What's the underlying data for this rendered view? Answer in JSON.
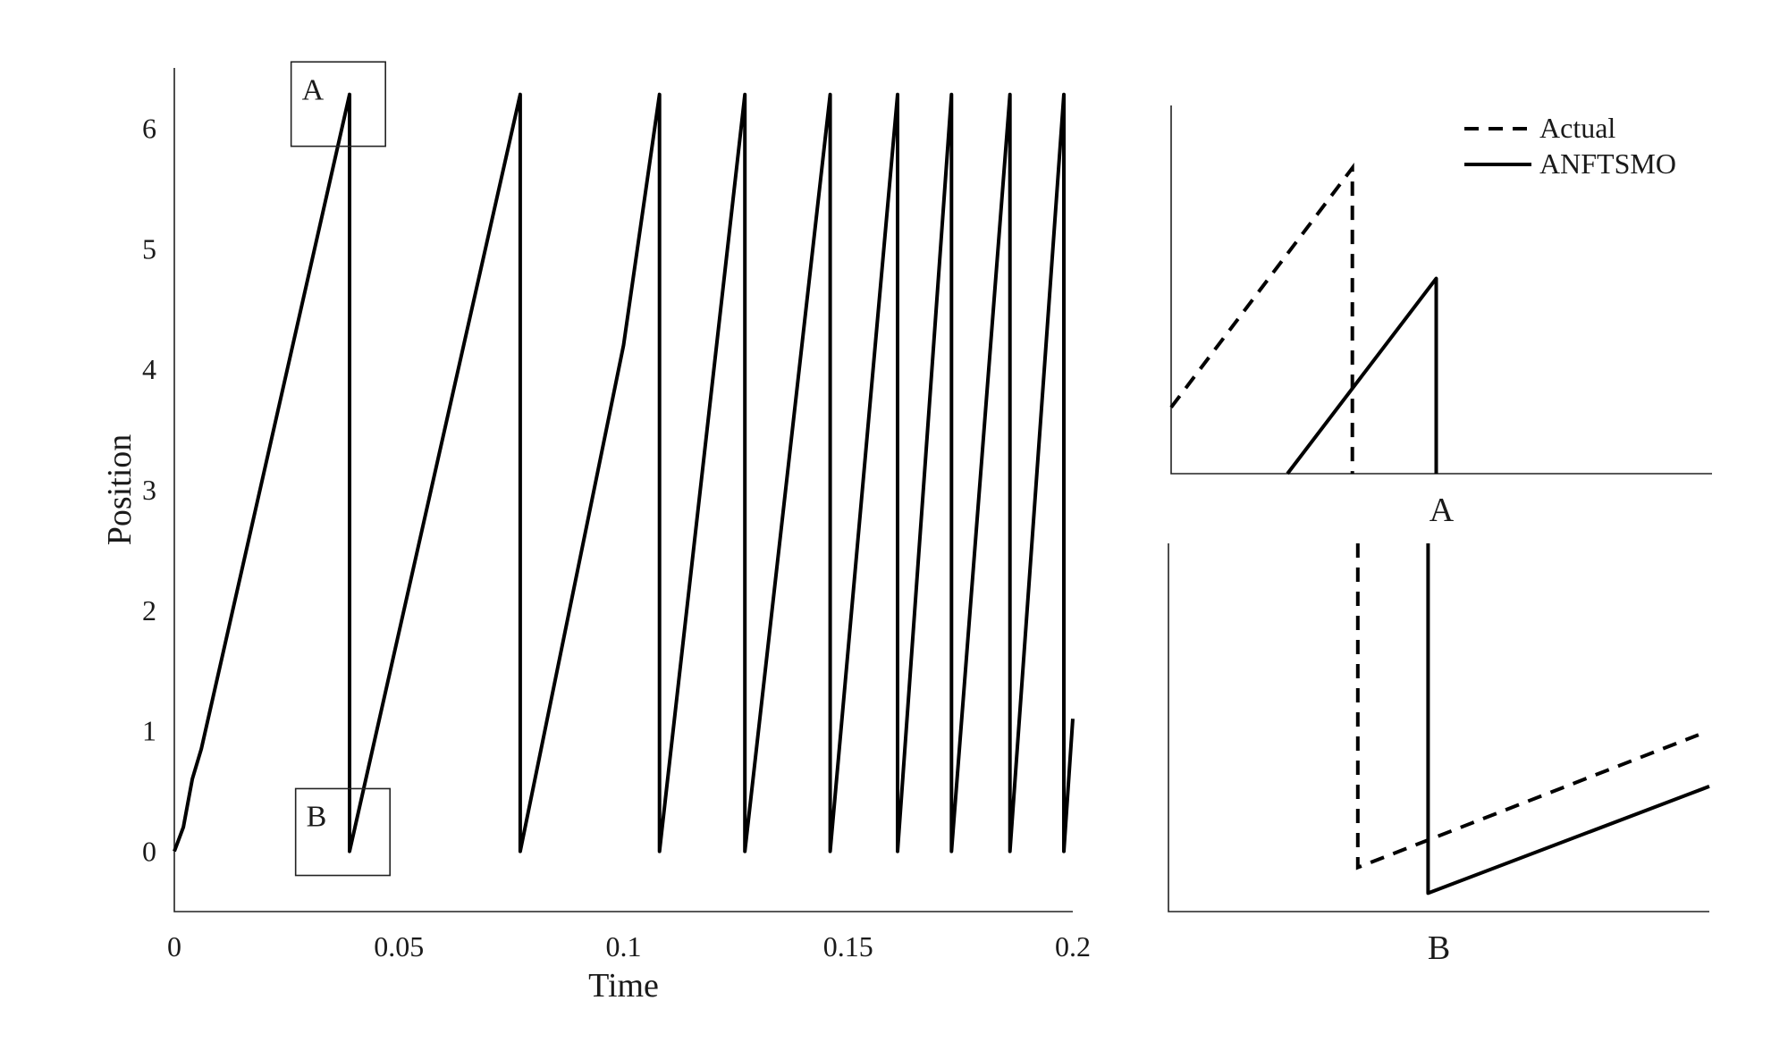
{
  "chart_data": [
    {
      "type": "line",
      "id": "main",
      "title": "",
      "xlabel": "Time",
      "ylabel": "Position",
      "xlim": [
        0,
        0.2
      ],
      "ylim": [
        -0.5,
        6.5
      ],
      "xticks": [
        0,
        0.05,
        0.1,
        0.15,
        0.2
      ],
      "xtick_labels": [
        "0",
        "0.05",
        "0.1",
        "0.15",
        "0.2"
      ],
      "yticks": [
        0,
        1,
        2,
        3,
        4,
        5,
        6
      ],
      "ytick_labels": [
        "0",
        "1",
        "2",
        "3",
        "4",
        "5",
        "6"
      ],
      "grid": false,
      "series": [
        {
          "style": "solid",
          "x": [
            0,
            0.002,
            0.004,
            0.006,
            0.039,
            0.039,
            0.077,
            0.077,
            0.1,
            0.108,
            0.108,
            0.127,
            0.127,
            0.146,
            0.146,
            0.161,
            0.161,
            0.173,
            0.173,
            0.186,
            0.186,
            0.198,
            0.198,
            0.2
          ],
          "y": [
            0,
            0.2,
            0.6,
            0.85,
            6.28,
            0,
            6.28,
            0,
            4.2,
            6.28,
            0,
            6.28,
            0,
            6.28,
            0,
            6.28,
            0,
            6.28,
            0,
            6.28,
            0,
            6.28,
            0,
            1.1
          ]
        }
      ],
      "annotations": [
        {
          "label": "A",
          "x0": 0.026,
          "x1": 0.047,
          "y0": 5.85,
          "y1": 6.55
        },
        {
          "label": "B",
          "x0": 0.027,
          "x1": 0.048,
          "y0": -0.2,
          "y1": 0.52
        }
      ]
    },
    {
      "type": "line",
      "id": "zoom-A",
      "title": "A",
      "series": [
        {
          "name": "Actual",
          "style": "dashed",
          "x": [
            0,
            0.335,
            0.335
          ],
          "y": [
            0.18,
            0.83,
            0
          ]
        },
        {
          "name": "ANFTSMO",
          "style": "solid",
          "x": [
            0.215,
            0.49,
            0.49
          ],
          "y": [
            0,
            0.53,
            0
          ]
        }
      ]
    },
    {
      "type": "line",
      "id": "zoom-B",
      "title": "B",
      "series": [
        {
          "name": "Actual",
          "style": "dashed",
          "x": [
            0.35,
            0.35,
            0.98
          ],
          "y": [
            1,
            0.12,
            0.48
          ]
        },
        {
          "name": "ANFTSMO",
          "style": "solid",
          "x": [
            0.48,
            0.48,
            1.0
          ],
          "y": [
            1,
            0.05,
            0.34
          ]
        }
      ]
    }
  ],
  "legend": {
    "position": "top-right",
    "items": [
      {
        "label": "Actual",
        "style": "dashed"
      },
      {
        "label": "ANFTSMO",
        "style": "solid"
      }
    ]
  }
}
